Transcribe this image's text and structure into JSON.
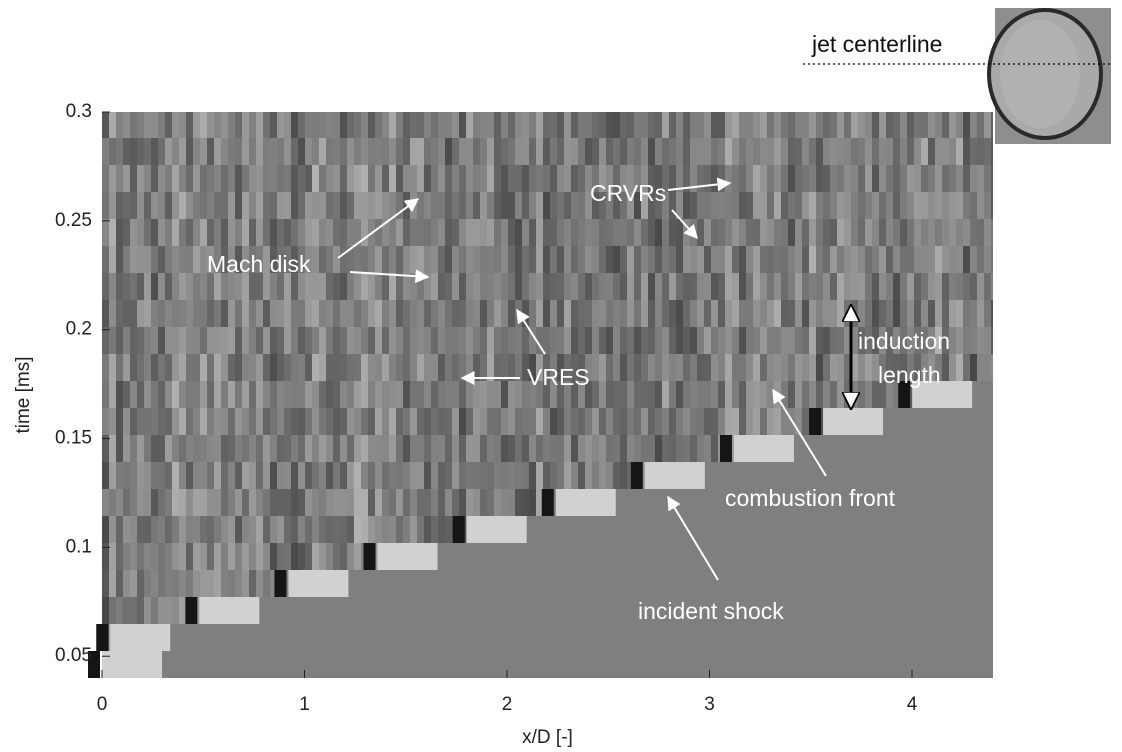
{
  "chart_data": {
    "type": "image",
    "xlabel": "x/D [-]",
    "ylabel": "time [ms]",
    "xlim": [
      0,
      4.4
    ],
    "ylim": [
      0.04,
      0.3
    ],
    "xticks": [
      0,
      1,
      2,
      3,
      4
    ],
    "yticks": [
      0.05,
      0.1,
      0.15,
      0.2,
      0.25,
      0.3
    ],
    "annotations": [
      "Mach disk",
      "VRES",
      "CRVRs",
      "induction",
      "length",
      "combustion front",
      "incident shock"
    ],
    "inset_label": "jet centerline"
  }
}
